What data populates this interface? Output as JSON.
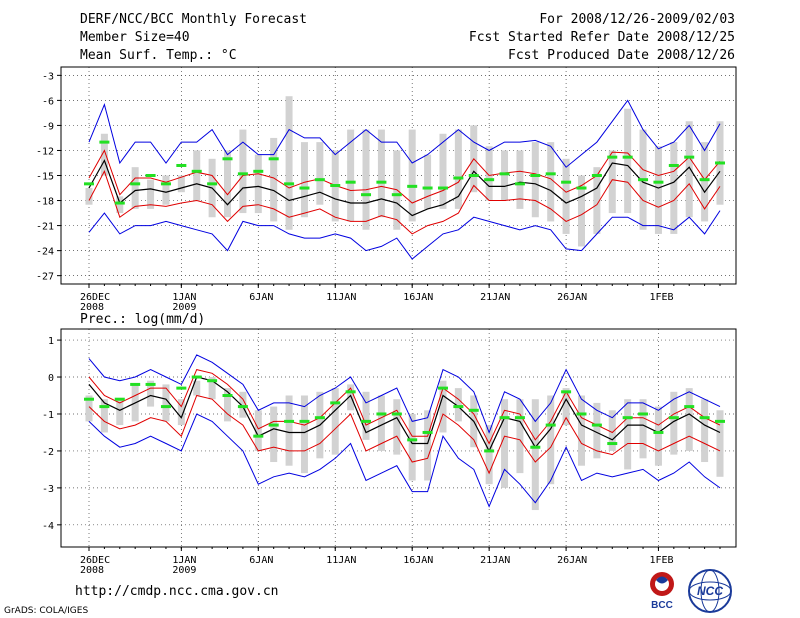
{
  "header": {
    "left_lines": [
      "DERF/NCC/BCC Monthly Forecast",
      "Member Size=40",
      "Mean Surf. Temp.: °C"
    ],
    "right_lines": [
      "For 2008/12/26-2009/02/03",
      "Fcst Started Refer Date 2008/12/25",
      "Fcst Produced Date 2008/12/26"
    ]
  },
  "footer": {
    "url": "http://cmdp.ncc.cma.gov.cn",
    "grads_credit": "GrADS: COLA/IGES",
    "logo_bcc": "BCC",
    "logo_ncc": "NCC"
  },
  "colors": {
    "ensemble_range": "#d2d2d2",
    "member_mark": "#22e022",
    "mean_line": "#000000",
    "std_band": "#e00000",
    "extreme_band": "#0000e0",
    "grid": "#444444"
  },
  "chart_data": [
    {
      "type": "line",
      "title": "Mean Surf. Temp.: °C",
      "ylim": [
        -28,
        -2
      ],
      "yticks": [
        -3,
        -6,
        -9,
        -12,
        -15,
        -18,
        -21,
        -24,
        -27
      ],
      "ytick_labels": [
        "-3",
        "-6",
        "-9",
        "-12",
        "-15",
        "-18",
        "-21",
        "-24",
        "-27"
      ],
      "x_tick_days": [
        0,
        6,
        11,
        16,
        21,
        26,
        31,
        37
      ],
      "x_tick_labels": [
        [
          "26DEC",
          "2008"
        ],
        [
          "1JAN",
          "2009"
        ],
        [
          "6JAN"
        ],
        [
          "11JAN"
        ],
        [
          "16JAN"
        ],
        [
          "21JAN"
        ],
        [
          "26JAN"
        ],
        [
          "1FEB"
        ]
      ],
      "series": {
        "mean": [
          -16.5,
          -13.2,
          -18.3,
          -16.8,
          -16.6,
          -17.0,
          -16.5,
          -16.0,
          -16.5,
          -18.5,
          -16.5,
          -16.3,
          -16.8,
          -18.0,
          -17.5,
          -17.0,
          -17.8,
          -18.3,
          -18.3,
          -17.8,
          -18.3,
          -19.8,
          -19.0,
          -18.5,
          -17.5,
          -14.5,
          -16.3,
          -16.3,
          -15.8,
          -16.0,
          -16.8,
          -18.3,
          -17.5,
          -16.5,
          -13.5,
          -13.8,
          -15.8,
          -16.5,
          -15.8,
          -14.0,
          -17.0,
          -14.5
        ],
        "std_upper": [
          -15.3,
          -12.0,
          -17.3,
          -15.3,
          -15.3,
          -15.8,
          -15.2,
          -14.6,
          -15.0,
          -17.3,
          -15.0,
          -14.8,
          -15.3,
          -16.5,
          -15.8,
          -15.4,
          -16.2,
          -16.8,
          -16.7,
          -16.3,
          -16.7,
          -18.3,
          -17.5,
          -16.8,
          -15.8,
          -13.0,
          -15.0,
          -14.7,
          -14.5,
          -14.8,
          -15.4,
          -17.0,
          -16.2,
          -15.0,
          -12.2,
          -12.3,
          -14.3,
          -15.0,
          -14.5,
          -12.8,
          -15.5,
          -13.3
        ],
        "std_lower": [
          -18.0,
          -14.5,
          -20.0,
          -18.7,
          -18.5,
          -18.7,
          -18.3,
          -18.0,
          -18.5,
          -20.5,
          -18.7,
          -18.5,
          -19.0,
          -20.0,
          -19.5,
          -19.0,
          -20.0,
          -20.5,
          -20.5,
          -19.8,
          -20.3,
          -22.0,
          -21.0,
          -20.5,
          -19.5,
          -16.2,
          -18.0,
          -18.0,
          -17.8,
          -18.0,
          -19.0,
          -20.5,
          -19.7,
          -18.5,
          -15.5,
          -15.8,
          -18.0,
          -18.8,
          -18.0,
          -16.0,
          -19.0,
          -16.3
        ],
        "max": [
          -11.0,
          -6.5,
          -13.5,
          -11.0,
          -11.0,
          -13.5,
          -11.0,
          -11.0,
          -9.5,
          -12.5,
          -11.0,
          -12.5,
          -12.5,
          -9.5,
          -10.5,
          -10.5,
          -12.5,
          -11.0,
          -9.5,
          -11.0,
          -11.0,
          -13.5,
          -12.5,
          -11.0,
          -9.5,
          -11.0,
          -12.0,
          -11.0,
          -11.0,
          -10.8,
          -11.5,
          -14.0,
          -12.5,
          -11.0,
          -8.5,
          -6.0,
          -9.5,
          -11.8,
          -11.0,
          -9.0,
          -12.0,
          -8.8
        ],
        "min": [
          -21.8,
          -19.5,
          -22.0,
          -21.0,
          -21.0,
          -20.5,
          -21.0,
          -21.5,
          -22.0,
          -24.0,
          -20.5,
          -21.0,
          -21.0,
          -22.0,
          -22.5,
          -22.5,
          -22.0,
          -22.5,
          -24.0,
          -23.5,
          -22.5,
          -25.0,
          -23.5,
          -22.0,
          -21.5,
          -20.0,
          -20.5,
          -21.0,
          -21.5,
          -21.0,
          -21.5,
          -23.8,
          -24.0,
          -22.0,
          -20.0,
          -20.0,
          -21.0,
          -21.0,
          -21.5,
          -20.0,
          -22.0,
          -19.2
        ]
      },
      "bars_top": [
        -16.5,
        -10.0,
        -17.5,
        -14.0,
        -15.5,
        -15.0,
        -15.0,
        -12.0,
        -13.0,
        -12.0,
        -9.5,
        -12.5,
        -10.5,
        -5.5,
        -11.0,
        -11.0,
        -12.0,
        -9.5,
        -9.5,
        -9.5,
        -12.0,
        -9.5,
        -12.5,
        -10.0,
        -9.5,
        -9.0,
        -11.5,
        -12.0,
        -12.0,
        -11.0,
        -11.0,
        -13.0,
        -15.0,
        -14.0,
        -12.0,
        -7.0,
        -9.5,
        -11.5,
        -11.0,
        -8.5,
        -11.0,
        -8.5
      ],
      "bars_bottom": [
        -18.5,
        -15.0,
        -19.5,
        -19.0,
        -19.0,
        -18.5,
        -17.0,
        -18.0,
        -20.0,
        -20.0,
        -19.5,
        -19.5,
        -20.5,
        -21.5,
        -20.0,
        -18.5,
        -20.5,
        -20.5,
        -21.5,
        -20.0,
        -21.5,
        -20.5,
        -19.0,
        -19.0,
        -19.0,
        -17.0,
        -18.0,
        -18.0,
        -19.0,
        -20.0,
        -20.5,
        -22.0,
        -23.5,
        -22.0,
        -19.5,
        -19.5,
        -21.5,
        -22.0,
        -22.0,
        -20.0,
        -20.5,
        -18.5
      ],
      "member_marks": [
        -16.0,
        -11.0,
        -18.3,
        -16.0,
        -15.0,
        -16.0,
        -13.8,
        -14.5,
        -16.0,
        -13.0,
        -14.8,
        -14.5,
        -13.0,
        -16.0,
        -16.5,
        -15.5,
        -16.2,
        -15.8,
        -17.3,
        -15.8,
        -17.3,
        -16.3,
        -16.5,
        -16.5,
        -15.3,
        -15.0,
        -15.5,
        -14.8,
        -16.0,
        -15.0,
        -14.8,
        -15.8,
        -16.5,
        -15.0,
        -12.8,
        -12.8,
        -15.5,
        -15.8,
        -13.8,
        -12.8,
        -15.5,
        -13.5
      ]
    },
    {
      "type": "line",
      "title": "Prec.: log(mm/d)",
      "ylim": [
        -4.6,
        1.3
      ],
      "yticks": [
        1,
        0,
        -1,
        -2,
        -3,
        -4
      ],
      "ytick_labels": [
        "1",
        "0",
        "-1",
        "-2",
        "-3",
        "-4"
      ],
      "x_tick_days": [
        0,
        6,
        11,
        16,
        21,
        26,
        31,
        37
      ],
      "x_tick_labels": [
        [
          "26DEC",
          "2008"
        ],
        [
          "1JAN",
          "2009"
        ],
        [
          "6JAN"
        ],
        [
          "11JAN"
        ],
        [
          "16JAN"
        ],
        [
          "21JAN"
        ],
        [
          "26JAN"
        ],
        [
          "1FEB"
        ]
      ],
      "series": {
        "mean": [
          -0.2,
          -0.7,
          -0.9,
          -0.7,
          -0.5,
          -0.6,
          -1.1,
          0.0,
          -0.1,
          -0.4,
          -0.8,
          -1.6,
          -1.4,
          -1.5,
          -1.5,
          -1.3,
          -0.9,
          -0.5,
          -1.5,
          -1.3,
          -1.1,
          -1.8,
          -1.8,
          -0.5,
          -0.8,
          -1.2,
          -2.0,
          -1.1,
          -1.2,
          -1.9,
          -1.4,
          -0.6,
          -1.3,
          -1.5,
          -1.7,
          -1.3,
          -1.3,
          -1.5,
          -1.2,
          -1.0,
          -1.3,
          -1.5
        ],
        "std_upper": [
          0.0,
          -0.5,
          -0.7,
          -0.5,
          -0.3,
          -0.3,
          -0.8,
          0.2,
          0.1,
          -0.2,
          -0.6,
          -1.4,
          -1.2,
          -1.2,
          -1.3,
          -1.1,
          -0.7,
          -0.3,
          -1.3,
          -1.1,
          -0.9,
          -1.6,
          -1.6,
          -0.3,
          -0.6,
          -1.0,
          -1.8,
          -0.9,
          -1.0,
          -1.7,
          -1.2,
          -0.4,
          -1.1,
          -1.3,
          -1.5,
          -1.1,
          -1.1,
          -1.3,
          -1.0,
          -0.8,
          -1.1,
          -1.3
        ],
        "std_lower": [
          -0.8,
          -1.2,
          -1.4,
          -1.3,
          -1.1,
          -1.2,
          -1.6,
          -0.5,
          -0.6,
          -1.0,
          -1.3,
          -2.0,
          -1.9,
          -2.0,
          -2.0,
          -1.8,
          -1.4,
          -1.0,
          -2.0,
          -1.8,
          -1.6,
          -2.3,
          -2.2,
          -1.0,
          -1.3,
          -1.7,
          -2.6,
          -1.6,
          -1.7,
          -2.3,
          -1.9,
          -1.1,
          -1.8,
          -2.0,
          -2.1,
          -1.8,
          -1.8,
          -2.0,
          -1.8,
          -1.6,
          -1.8,
          -2.0
        ],
        "max": [
          0.5,
          0.0,
          -0.1,
          0.0,
          0.2,
          0.0,
          -0.2,
          0.6,
          0.4,
          0.1,
          -0.2,
          -0.9,
          -0.7,
          -0.7,
          -0.8,
          -0.5,
          -0.3,
          0.0,
          -0.7,
          -0.5,
          -0.3,
          -1.2,
          -1.1,
          0.2,
          0.0,
          -0.4,
          -1.5,
          -0.4,
          -0.6,
          -1.2,
          -0.7,
          0.2,
          -0.6,
          -0.9,
          -1.1,
          -0.7,
          -0.7,
          -0.9,
          -0.6,
          -0.4,
          -0.6,
          -0.8
        ],
        "min": [
          -1.2,
          -1.6,
          -1.9,
          -1.8,
          -1.6,
          -1.8,
          -2.0,
          -1.0,
          -1.2,
          -1.6,
          -2.0,
          -2.9,
          -2.7,
          -2.6,
          -2.7,
          -2.5,
          -2.2,
          -1.8,
          -2.8,
          -2.6,
          -2.4,
          -3.1,
          -3.1,
          -1.6,
          -2.2,
          -2.5,
          -3.5,
          -2.5,
          -2.9,
          -3.4,
          -2.8,
          -1.9,
          -2.8,
          -2.6,
          -2.7,
          -2.6,
          -2.5,
          -2.8,
          -2.6,
          -2.3,
          -2.7,
          -3.0
        ]
      },
      "bars_top": [
        -0.5,
        -0.6,
        -0.6,
        -0.2,
        -0.1,
        -0.2,
        -0.6,
        -0.1,
        0.0,
        -0.3,
        -0.4,
        -0.9,
        -0.8,
        -0.5,
        -0.5,
        -0.4,
        -0.3,
        -0.2,
        -0.4,
        -0.5,
        -0.6,
        -1.0,
        -0.9,
        -0.1,
        -0.3,
        -0.5,
        -1.3,
        -0.6,
        -0.6,
        -0.6,
        -0.5,
        -0.3,
        -0.5,
        -0.7,
        -0.9,
        -0.6,
        -0.6,
        -0.8,
        -0.4,
        -0.3,
        -0.6,
        -0.9
      ],
      "bars_bottom": [
        -1.2,
        -1.5,
        -1.3,
        -1.2,
        -0.8,
        -1.2,
        -1.3,
        -0.5,
        -0.6,
        -1.2,
        -1.1,
        -2.0,
        -2.3,
        -2.4,
        -2.6,
        -2.2,
        -2.1,
        -0.9,
        -1.7,
        -2.0,
        -2.1,
        -2.8,
        -2.8,
        -1.5,
        -1.2,
        -1.9,
        -2.9,
        -3.0,
        -2.6,
        -3.6,
        -2.9,
        -1.3,
        -2.4,
        -2.2,
        -2.0,
        -2.5,
        -2.2,
        -2.4,
        -2.1,
        -2.0,
        -2.3,
        -2.7
      ],
      "member_marks": [
        -0.6,
        -0.8,
        -0.6,
        -0.2,
        -0.2,
        -0.8,
        -0.3,
        0.0,
        -0.1,
        -0.5,
        -0.8,
        -1.6,
        -1.3,
        -1.2,
        -1.2,
        -1.1,
        -0.7,
        -0.4,
        -1.2,
        -1.0,
        -1.0,
        -1.7,
        -1.5,
        -0.3,
        -0.8,
        -0.9,
        -2.0,
        -1.1,
        -1.1,
        -1.9,
        -1.3,
        -0.4,
        -1.0,
        -1.3,
        -1.8,
        -1.1,
        -1.0,
        -1.5,
        -1.1,
        -0.8,
        -1.1,
        -1.2
      ]
    }
  ]
}
